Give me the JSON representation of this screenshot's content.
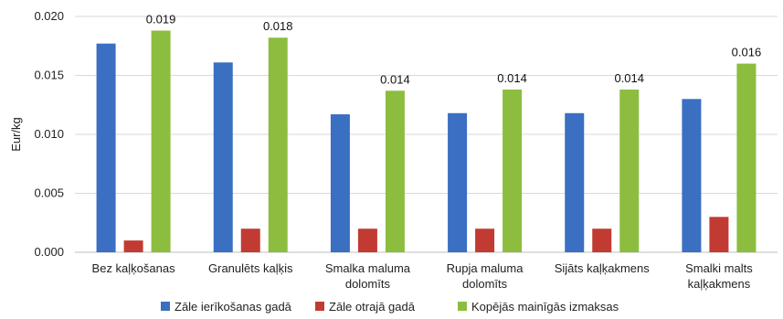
{
  "chart_data": {
    "type": "bar",
    "title": "",
    "xlabel": "",
    "ylabel": "Eur/kg",
    "ylim": [
      0,
      0.02
    ],
    "yticks": [
      "0.000",
      "0.005",
      "0.010",
      "0.015",
      "0.020"
    ],
    "grid": true,
    "legend_position": "bottom",
    "categories": [
      [
        "Bez kaļķošanas"
      ],
      [
        "Granulēts kaļķis"
      ],
      [
        "Smalka maluma",
        "dolomīts"
      ],
      [
        "Rupja maluma",
        "dolomīts"
      ],
      [
        "Sijāts kaļķakmens"
      ],
      [
        "Smalki malts",
        "kaļķakmens"
      ]
    ],
    "series": [
      {
        "name": "Zāle ierīkošanas gadā",
        "color": "#3a6fc2",
        "values": [
          0.0177,
          0.0161,
          0.0117,
          0.0118,
          0.0118,
          0.013
        ]
      },
      {
        "name": "Zāle otrajā gadā",
        "color": "#c23b33",
        "values": [
          0.001,
          0.002,
          0.002,
          0.002,
          0.002,
          0.003
        ]
      },
      {
        "name": "Kopējās mainīgās izmaksas",
        "color": "#8cbd3f",
        "values": [
          0.0188,
          0.0182,
          0.0137,
          0.0138,
          0.0138,
          0.016
        ]
      }
    ],
    "data_labels": {
      "series_index": 2,
      "labels": [
        "0.019",
        "0.018",
        "0.014",
        "0.014",
        "0.014",
        "0.016"
      ]
    }
  }
}
